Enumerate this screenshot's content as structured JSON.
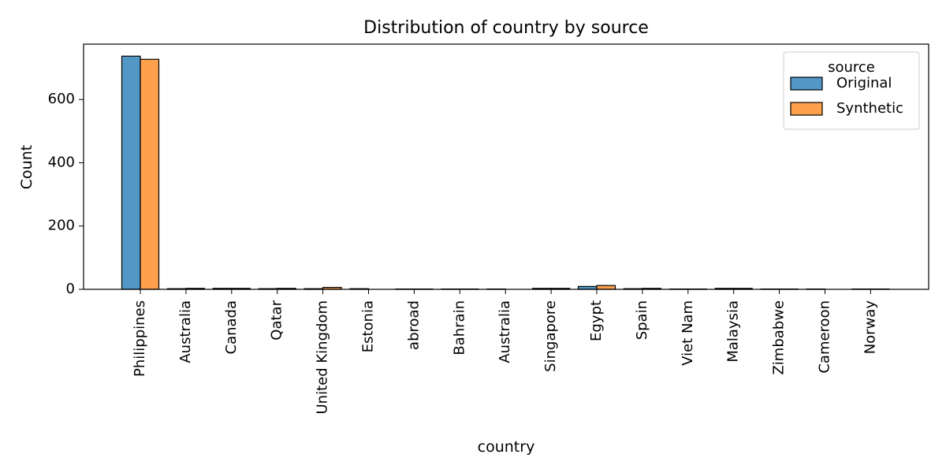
{
  "chart_data": {
    "type": "bar",
    "title": "Distribution of country by source",
    "xlabel": "country",
    "ylabel": "Count",
    "ylim": [
      0,
      775
    ],
    "yticks": [
      0,
      200,
      400,
      600
    ],
    "categories": [
      "Philippines",
      "Australia",
      "Canada",
      "Qatar",
      "United Kingdom",
      "Estonia",
      "abroad",
      "Bahrain",
      "Australia",
      "Singapore",
      "Egypt",
      "Spain",
      "Viet Nam",
      "Malaysia",
      "Zimbabwe",
      "Cameroon",
      "Norway"
    ],
    "series": [
      {
        "name": "Original",
        "color": "#5297c6",
        "values": [
          737,
          2,
          3,
          2,
          2,
          2,
          1,
          1,
          1,
          3,
          9,
          2,
          1,
          3,
          1,
          1,
          1
        ]
      },
      {
        "name": "Synthetic",
        "color": "#ffa04d",
        "values": [
          727,
          3,
          3,
          3,
          6,
          0,
          1,
          1,
          0,
          3,
          12,
          3,
          1,
          3,
          1,
          0,
          1
        ]
      }
    ],
    "legend": {
      "title": "source",
      "placement": "top-right"
    },
    "grid": false
  }
}
